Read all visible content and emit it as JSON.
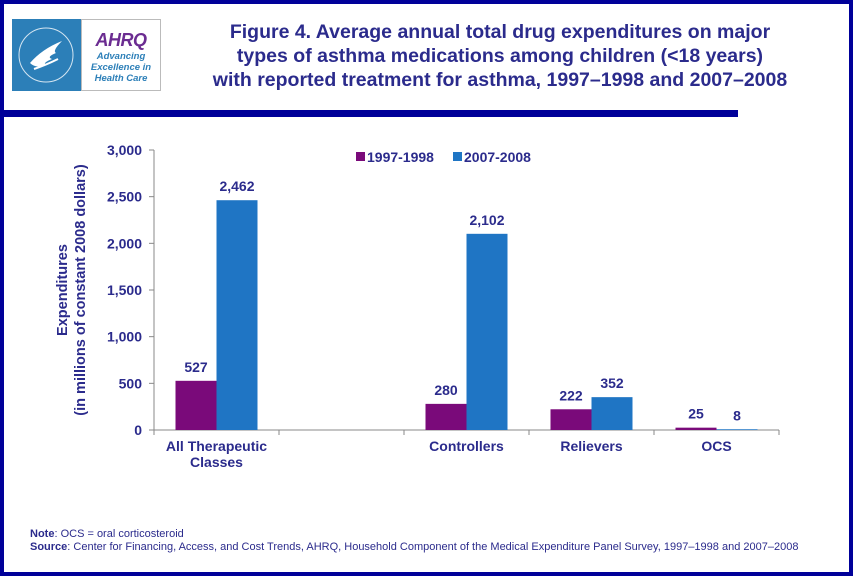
{
  "logo": {
    "brand": "AHRQ",
    "tagline": [
      "Advancing",
      "Excellence in",
      "Health Care"
    ]
  },
  "title_lines": [
    "Figure 4. Average annual total drug expenditures on major",
    "types of asthma medications among children (<18 years)",
    "with reported treatment for asthma, 1997–1998 and 2007–2008"
  ],
  "chart_data": {
    "type": "bar",
    "title": "Figure 4. Average annual total drug expenditures on major types of asthma medications among children (<18 years) with reported treatment for asthma, 1997–1998 and 2007–2008",
    "categories": [
      "All Therapeutic Classes",
      "",
      "Controllers",
      "Relievers",
      "OCS"
    ],
    "category_label_lines": [
      [
        "All Therapeutic",
        "Classes"
      ],
      [],
      [
        "Controllers"
      ],
      [
        "Relievers"
      ],
      [
        "OCS"
      ]
    ],
    "series": [
      {
        "name": "1997-1998",
        "color": "#7a0a7a",
        "values": [
          527,
          null,
          280,
          222,
          25
        ],
        "labels": [
          "527",
          "",
          "280",
          "222",
          "25"
        ]
      },
      {
        "name": "2007-2008",
        "color": "#1f75c4",
        "values": [
          2462,
          null,
          2102,
          352,
          8
        ],
        "labels": [
          "2,462",
          "",
          "2,102",
          "352",
          "8"
        ]
      }
    ],
    "xlabel": "",
    "ylabel_lines": [
      "Expenditures",
      "(in millions of constant 2008 dollars)"
    ],
    "ylim": [
      0,
      3000
    ],
    "yticks": [
      0,
      500,
      1000,
      1500,
      2000,
      2500,
      3000
    ],
    "ytick_labels": [
      "0",
      "500",
      "1,000",
      "1,500",
      "2,000",
      "2,500",
      "3,000"
    ],
    "grid": false,
    "legend": "top-center"
  },
  "notes": {
    "note_label": "Note",
    "note_text": ": OCS = oral corticosteroid",
    "source_label": "Source",
    "source_text": ": Center for Financing, Access, and Cost Trends, AHRQ,  Household Component of the Medical Expenditure Panel Survey,  1997–1998 and 2007–2008"
  }
}
